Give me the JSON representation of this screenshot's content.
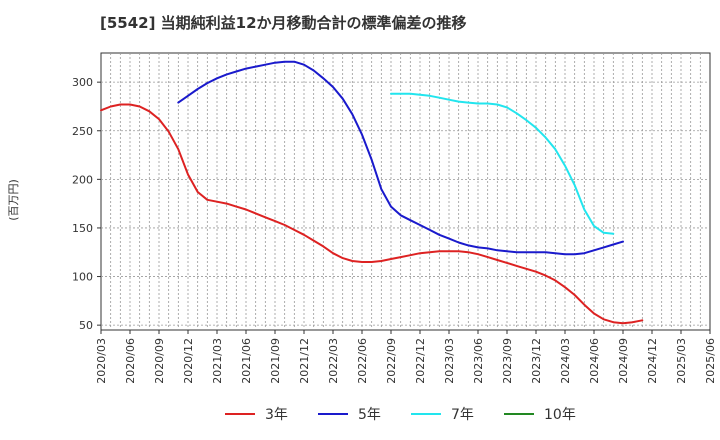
{
  "chart_data": {
    "type": "line",
    "title": "[5542]  当期純利益12か月移動合計の標準偏差の推移",
    "ylabel": "(百万円)",
    "xlabel": "",
    "ylim": [
      45,
      330
    ],
    "yticks": [
      50,
      100,
      150,
      200,
      250,
      300
    ],
    "x_ticks": [
      "2020/03",
      "2020/06",
      "2020/09",
      "2020/12",
      "2021/03",
      "2021/06",
      "2021/09",
      "2021/12",
      "2022/03",
      "2022/06",
      "2022/09",
      "2022/12",
      "2023/03",
      "2023/06",
      "2023/09",
      "2023/12",
      "2024/03",
      "2024/06",
      "2024/09",
      "2024/12",
      "2025/03",
      "2025/06"
    ],
    "grid": true,
    "legend_position": "bottom",
    "series": [
      {
        "name": "3年",
        "color": "#dd2222",
        "start_index": 0,
        "values": [
          271,
          275,
          277,
          277,
          275,
          270,
          262,
          249,
          231,
          205,
          187,
          179,
          177,
          175,
          172,
          169,
          165,
          161,
          157,
          153,
          148,
          143,
          137,
          131,
          124,
          119,
          116,
          115,
          115,
          116,
          118,
          120,
          122,
          124,
          125,
          126,
          126,
          126,
          125,
          123,
          120,
          117,
          114,
          111,
          108,
          105,
          101,
          96,
          89,
          81,
          71,
          62,
          56,
          53,
          52,
          53,
          55
        ]
      },
      {
        "name": "5年",
        "color": "#1a1acc",
        "start_index": 8,
        "values": [
          279,
          286,
          293,
          299,
          304,
          308,
          311,
          314,
          316,
          318,
          320,
          321,
          321,
          318,
          312,
          304,
          295,
          283,
          267,
          246,
          220,
          190,
          172,
          163,
          158,
          153,
          148,
          143,
          139,
          135,
          132,
          130,
          129,
          127,
          126,
          125,
          125,
          125,
          125,
          124,
          123,
          123,
          124,
          127,
          130,
          133,
          136
        ]
      },
      {
        "name": "7年",
        "color": "#22e5ee",
        "start_index": 30,
        "values": [
          288,
          288,
          288,
          287,
          286,
          284,
          282,
          280,
          279,
          278,
          278,
          277,
          274,
          268,
          261,
          253,
          243,
          231,
          214,
          194,
          169,
          152,
          145,
          144
        ]
      },
      {
        "name": "10年",
        "color": "#228822",
        "start_index": 0,
        "values": []
      }
    ]
  }
}
